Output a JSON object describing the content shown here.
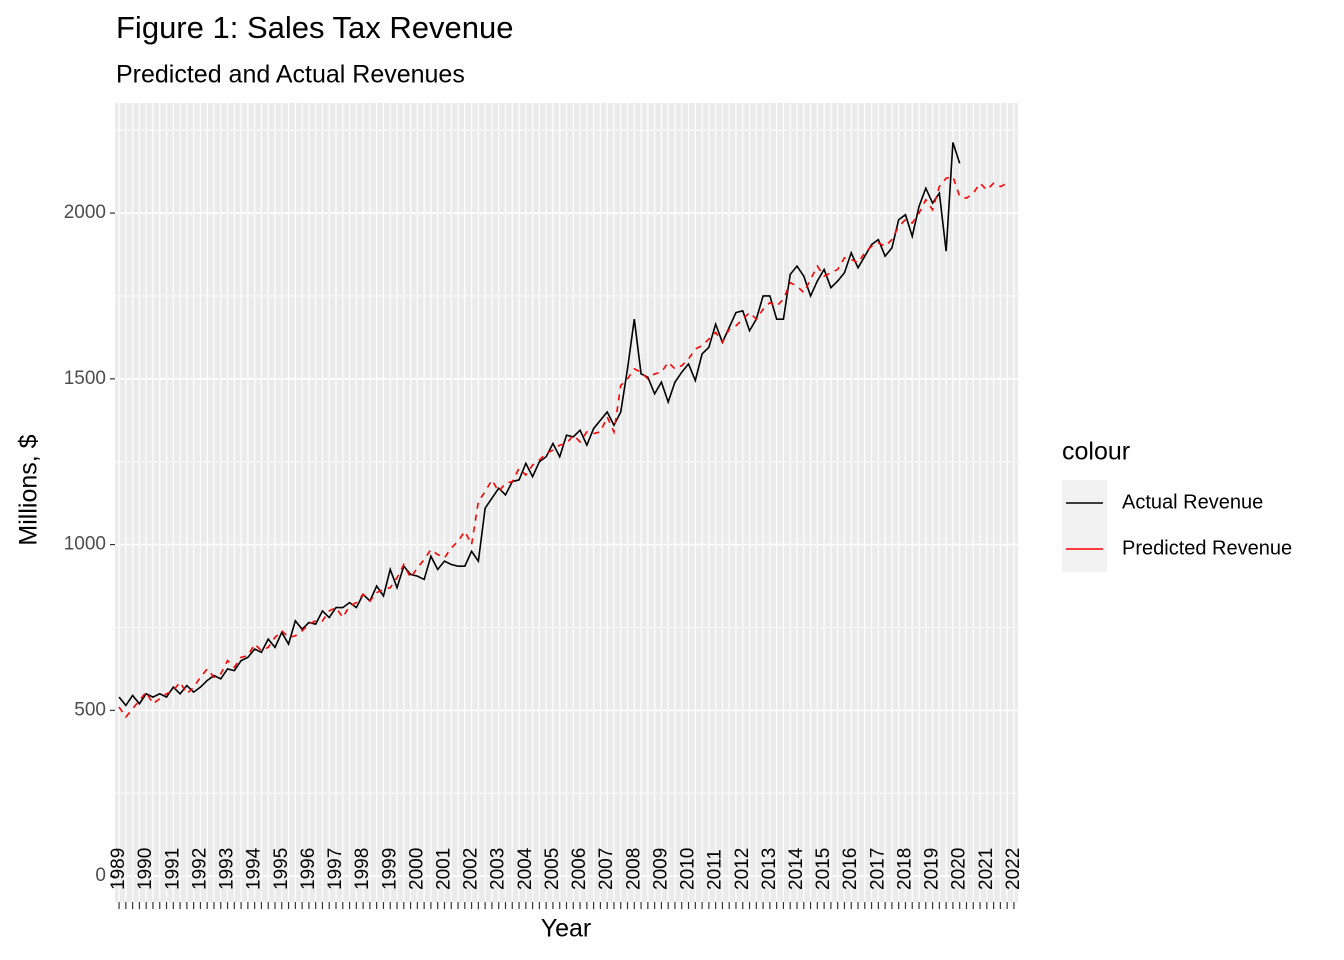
{
  "chart_data": {
    "type": "line",
    "title": "Figure 1: Sales Tax Revenue",
    "subtitle": "Predicted and Actual Revenues",
    "x_label": "Year",
    "y_label": "Millions, $",
    "legend_title": "colour",
    "legend_position": "right",
    "grid": true,
    "categories": [
      "1989",
      null,
      null,
      null,
      "1990",
      null,
      null,
      null,
      "1991",
      null,
      null,
      null,
      "1992",
      null,
      null,
      null,
      "1993",
      null,
      null,
      null,
      "1994",
      null,
      null,
      null,
      "1995",
      null,
      null,
      null,
      "1996",
      null,
      null,
      null,
      "1997",
      null,
      null,
      null,
      "1998",
      null,
      null,
      null,
      "1999",
      null,
      null,
      null,
      "2000",
      null,
      null,
      null,
      "2001",
      null,
      null,
      null,
      "2002",
      null,
      null,
      null,
      "2003",
      null,
      null,
      null,
      "2004",
      null,
      null,
      null,
      "2005",
      null,
      null,
      null,
      "2006",
      null,
      null,
      null,
      "2007",
      null,
      null,
      null,
      "2008",
      null,
      null,
      null,
      "2009",
      null,
      null,
      null,
      "2010",
      null,
      null,
      null,
      "2011",
      null,
      null,
      null,
      "2012",
      null,
      null,
      null,
      "2013",
      null,
      null,
      null,
      "2014",
      null,
      null,
      null,
      "2015",
      null,
      null,
      null,
      "2016",
      null,
      null,
      null,
      "2017",
      null,
      null,
      null,
      "2018",
      null,
      null,
      null,
      "2019",
      null,
      null,
      null,
      "2020",
      null,
      null,
      null,
      "2021",
      null,
      null,
      null,
      "2022"
    ],
    "series": [
      {
        "name": "Actual Revenue",
        "color": "#000000",
        "dash": "solid",
        "values": [
          540,
          515,
          545,
          520,
          550,
          540,
          550,
          540,
          570,
          550,
          575,
          555,
          570,
          590,
          605,
          595,
          625,
          620,
          650,
          660,
          685,
          675,
          715,
          690,
          735,
          700,
          770,
          745,
          765,
          760,
          800,
          780,
          810,
          810,
          825,
          810,
          850,
          830,
          875,
          845,
          925,
          870,
          935,
          910,
          905,
          895,
          965,
          925,
          950,
          940,
          935,
          935,
          980,
          950,
          1110,
          1140,
          1170,
          1150,
          1190,
          1195,
          1245,
          1205,
          1250,
          1265,
          1305,
          1265,
          1330,
          1325,
          1345,
          1300,
          1350,
          1375,
          1400,
          1360,
          1400,
          1530,
          1680,
          1515,
          1505,
          1455,
          1490,
          1430,
          1490,
          1520,
          1545,
          1495,
          1575,
          1595,
          1665,
          1610,
          1655,
          1700,
          1705,
          1645,
          1680,
          1750,
          1750,
          1680,
          1680,
          1815,
          1840,
          1810,
          1750,
          1795,
          1830,
          1775,
          1795,
          1820,
          1880,
          1835,
          1870,
          1905,
          1920,
          1870,
          1895,
          1980,
          1995,
          1930,
          2020,
          2075,
          2030,
          2060,
          1885,
          2213,
          2150,
          null,
          null,
          null,
          null,
          null,
          null,
          null,
          null
        ]
      },
      {
        "name": "Predicted Revenue",
        "color": "#ff0000",
        "dash": "dashed",
        "values": [
          510,
          480,
          505,
          530,
          555,
          520,
          535,
          550,
          560,
          585,
          550,
          570,
          600,
          625,
          600,
          610,
          650,
          630,
          660,
          665,
          700,
          680,
          690,
          720,
          740,
          720,
          725,
          740,
          760,
          770,
          770,
          800,
          810,
          780,
          815,
          825,
          850,
          830,
          855,
          865,
          870,
          900,
          940,
          900,
          930,
          955,
          985,
          970,
          960,
          990,
          1010,
          1040,
          1000,
          1130,
          1160,
          1195,
          1160,
          1185,
          1190,
          1230,
          1210,
          1240,
          1255,
          1275,
          1285,
          1300,
          1305,
          1330,
          1310,
          1340,
          1335,
          1340,
          1385,
          1340,
          1480,
          1500,
          1530,
          1520,
          1500,
          1515,
          1520,
          1550,
          1530,
          1540,
          1560,
          1590,
          1600,
          1620,
          1640,
          1610,
          1650,
          1660,
          1680,
          1700,
          1680,
          1710,
          1730,
          1720,
          1740,
          1790,
          1780,
          1760,
          1800,
          1840,
          1810,
          1820,
          1830,
          1865,
          1860,
          1850,
          1880,
          1900,
          1910,
          1900,
          1920,
          1960,
          1980,
          1970,
          2000,
          2040,
          2010,
          2080,
          2105,
          2110,
          2050,
          2045,
          2060,
          2090,
          2070,
          2090,
          2080,
          2090,
          null
        ]
      }
    ],
    "ylim": [
      -78,
      2332
    ],
    "yticks": [
      0,
      500,
      1000,
      1500,
      2000
    ]
  }
}
